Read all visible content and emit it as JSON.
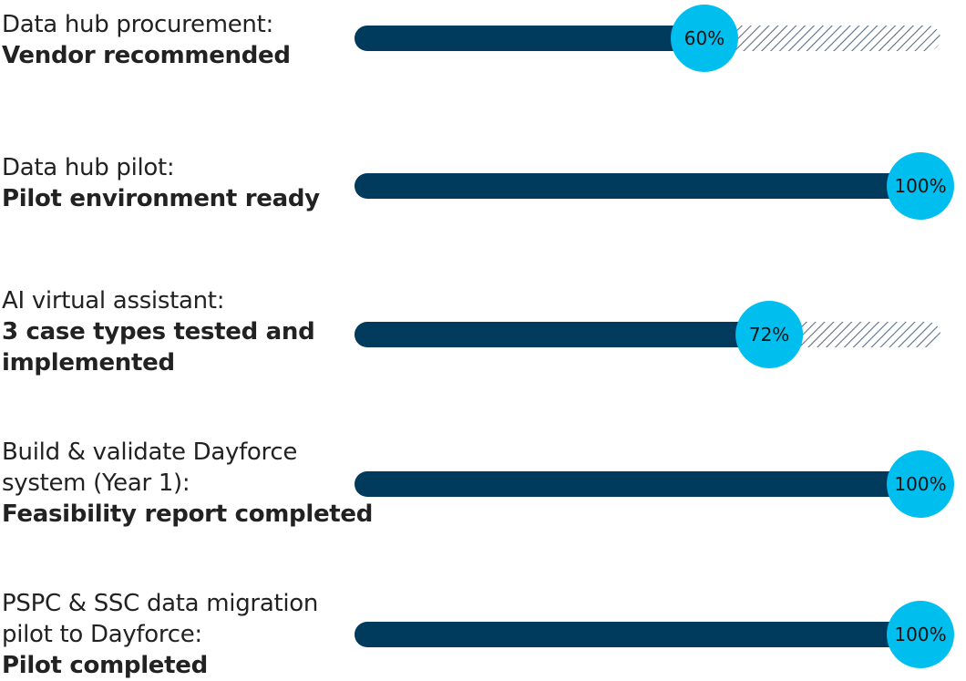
{
  "chart_data": {
    "type": "bar",
    "orientation": "horizontal",
    "value_unit": "%",
    "xlim": [
      0,
      100
    ],
    "colors": {
      "completed": "#003a5d",
      "remaining_hatch": "#5b6f86",
      "marker": "#00bfef"
    },
    "items": [
      {
        "title": "Data hub procurement:",
        "status": "Vendor recommended",
        "value": 60,
        "value_label": "60%"
      },
      {
        "title": "Data hub pilot:",
        "status": "Pilot environment ready",
        "value": 100,
        "value_label": "100%"
      },
      {
        "title": "AI virtual assistant:",
        "status": "3 case types tested and implemented",
        "value": 72,
        "value_label": "72%"
      },
      {
        "title": "Build & validate Dayforce system (Year 1):",
        "status": "Feasibility report completed",
        "value": 100,
        "value_label": "100%"
      },
      {
        "title": "PSPC & SSC data migration pilot to Dayforce:",
        "status": "Pilot completed",
        "value": 100,
        "value_label": "100%"
      }
    ]
  }
}
